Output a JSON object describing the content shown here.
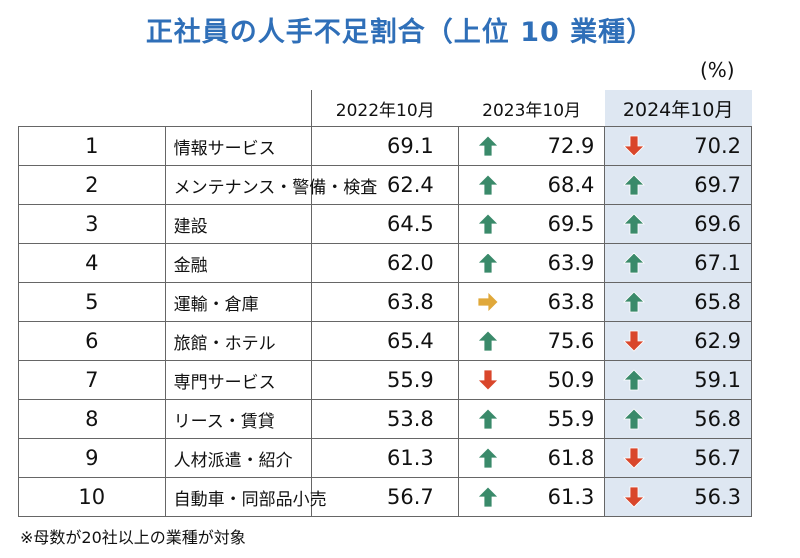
{
  "title": "正社員の人手不足割合（上位 10 業種）",
  "unit": "(%)",
  "note": "※母数が20社以上の業種が対象",
  "colors": {
    "title": "#2F6FB8",
    "highlight_bg": "#DEE7F2",
    "arrow_up": "#3A8A6A",
    "arrow_down": "#D9462B",
    "arrow_flat": "#E0A83A"
  },
  "chart_data": {
    "type": "table",
    "columns": [
      "2022年10月",
      "2023年10月",
      "2024年10月"
    ],
    "highlight_column": "2024年10月",
    "rows": [
      {
        "rank": "1",
        "industry": "情報サービス",
        "v2022": "69.1",
        "v2023": "72.9",
        "t2023": "up",
        "v2024": "70.2",
        "t2024": "down"
      },
      {
        "rank": "2",
        "industry": "メンテナンス・警備・検査",
        "v2022": "62.4",
        "v2023": "68.4",
        "t2023": "up",
        "v2024": "69.7",
        "t2024": "up"
      },
      {
        "rank": "3",
        "industry": "建設",
        "v2022": "64.5",
        "v2023": "69.5",
        "t2023": "up",
        "v2024": "69.6",
        "t2024": "up"
      },
      {
        "rank": "4",
        "industry": "金融",
        "v2022": "62.0",
        "v2023": "63.9",
        "t2023": "up",
        "v2024": "67.1",
        "t2024": "up"
      },
      {
        "rank": "5",
        "industry": "運輸・倉庫",
        "v2022": "63.8",
        "v2023": "63.8",
        "t2023": "flat",
        "v2024": "65.8",
        "t2024": "up"
      },
      {
        "rank": "6",
        "industry": "旅館・ホテル",
        "v2022": "65.4",
        "v2023": "75.6",
        "t2023": "up",
        "v2024": "62.9",
        "t2024": "down"
      },
      {
        "rank": "7",
        "industry": "専門サービス",
        "v2022": "55.9",
        "v2023": "50.9",
        "t2023": "down",
        "v2024": "59.1",
        "t2024": "up"
      },
      {
        "rank": "8",
        "industry": "リース・賃貸",
        "v2022": "53.8",
        "v2023": "55.9",
        "t2023": "up",
        "v2024": "56.8",
        "t2024": "up"
      },
      {
        "rank": "9",
        "industry": "人材派遣・紹介",
        "v2022": "61.3",
        "v2023": "61.8",
        "t2023": "up",
        "v2024": "56.7",
        "t2024": "down"
      },
      {
        "rank": "10",
        "industry": "自動車・同部品小売",
        "v2022": "56.7",
        "v2023": "61.3",
        "t2023": "up",
        "v2024": "56.3",
        "t2024": "down"
      }
    ]
  }
}
